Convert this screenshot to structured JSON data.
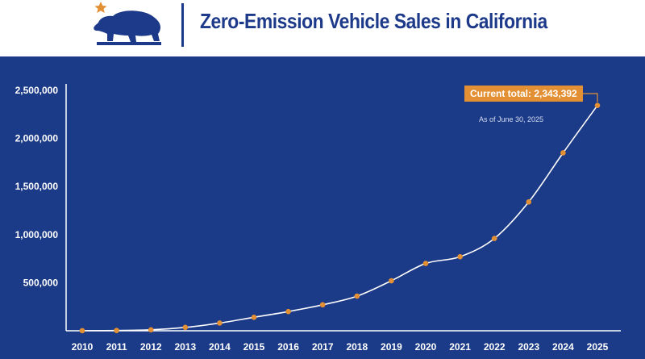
{
  "header": {
    "title": "Zero-Emission Vehicle Sales in California",
    "logo_icon": "california-bear-star-icon"
  },
  "colors": {
    "background": "#1b3a87",
    "line": "#ffffff",
    "marker": "#e39035",
    "header_text": "#1d3a8a"
  },
  "callout": {
    "label": "Current total: 2,343,392",
    "note": "As of June 30, 2025"
  },
  "chart_data": {
    "type": "line",
    "title": "Zero-Emission Vehicle Sales in California",
    "xlabel": "",
    "ylabel": "",
    "x": [
      "2010",
      "2011",
      "2012",
      "2013",
      "2014",
      "2015",
      "2016",
      "2017",
      "2018",
      "2019",
      "2020",
      "2021",
      "2022",
      "2023",
      "2024",
      "2025"
    ],
    "series": [
      {
        "values": [
          1000,
          3000,
          10000,
          35000,
          80000,
          140000,
          200000,
          270000,
          360000,
          520000,
          700000,
          770000,
          960000,
          1340000,
          1850000,
          2343392
        ]
      }
    ],
    "y_ticks": [
      "500,000",
      "1,000,000",
      "1,500,000",
      "2,000,000",
      "2,500,000"
    ],
    "y_tick_values": [
      500000,
      1000000,
      1500000,
      2000000,
      2500000
    ],
    "ylim": [
      0,
      2500000
    ],
    "grid": false,
    "legend": "none"
  }
}
